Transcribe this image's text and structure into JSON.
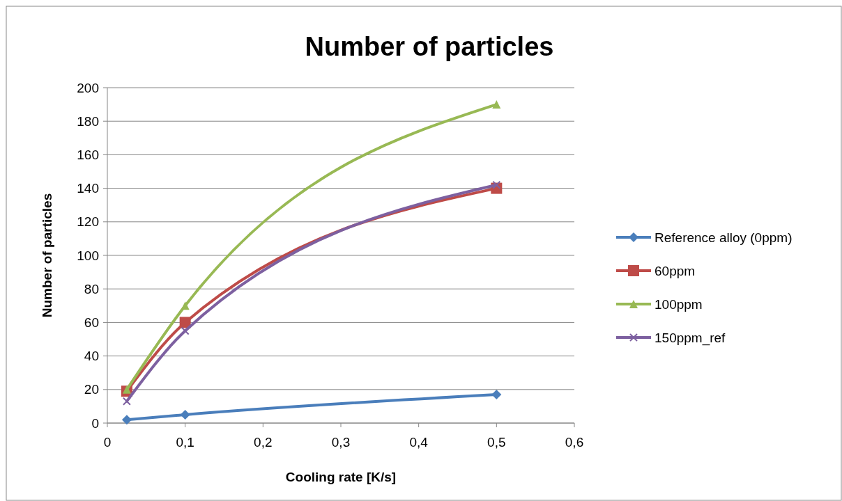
{
  "chart_data": {
    "type": "line",
    "title": "Number of particles",
    "xlabel": "Cooling rate [K/s]",
    "ylabel": "Number of particles",
    "x": [
      0.025,
      0.1,
      0.5
    ],
    "series": [
      {
        "name": "Reference alloy (0ppm)",
        "color": "#4a7ebb",
        "values": [
          2,
          5,
          17
        ],
        "marker": "diamond"
      },
      {
        "name": "60ppm",
        "color": "#be4b48",
        "values": [
          19,
          60,
          140
        ],
        "marker": "square"
      },
      {
        "name": "100ppm",
        "color": "#98b954",
        "values": [
          20,
          70,
          190
        ],
        "marker": "triangle"
      },
      {
        "name": "150ppm_ref",
        "color": "#7d60a0",
        "values": [
          13,
          55,
          142
        ],
        "marker": "cross"
      }
    ],
    "xlim": [
      0,
      0.6
    ],
    "xticks": [
      0,
      {
        "value": 0.1,
        "label": "0,1"
      },
      {
        "value": 0.2,
        "label": "0,2"
      },
      {
        "value": 0.3,
        "label": "0,3"
      },
      {
        "value": 0.4,
        "label": "0,4"
      },
      {
        "value": 0.5,
        "label": "0,5"
      },
      {
        "value": 0.6,
        "label": "0,6"
      }
    ],
    "ylim": [
      0,
      200
    ],
    "yticks": [
      0,
      20,
      40,
      60,
      80,
      100,
      120,
      140,
      160,
      180,
      200
    ],
    "grid": "y",
    "legend": "right",
    "line_style": "solid"
  }
}
